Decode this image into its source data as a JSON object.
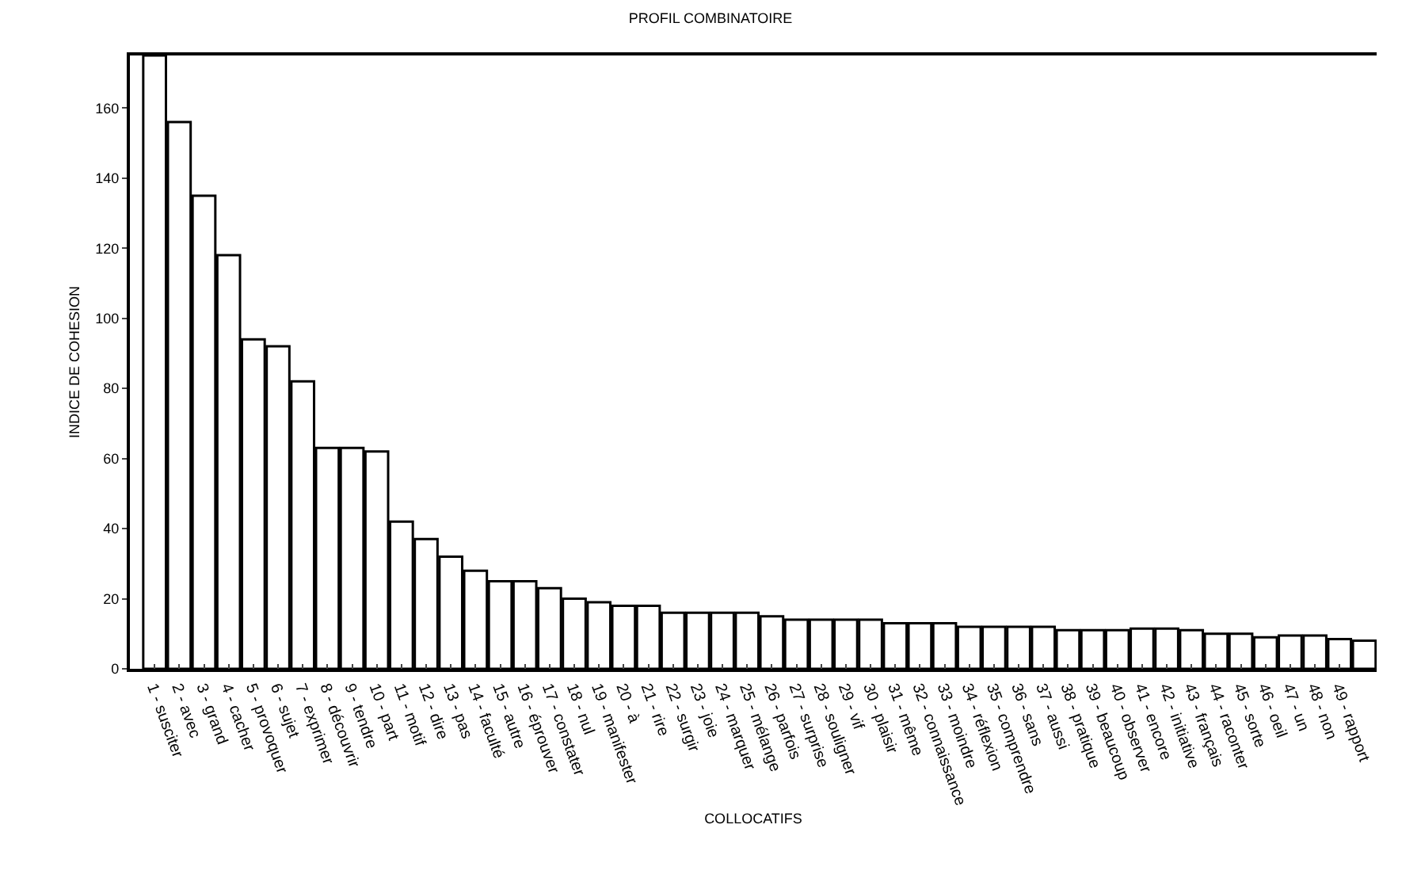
{
  "chart_data": {
    "type": "bar",
    "title": "PROFIL COMBINATOIRE",
    "xlabel": "COLLOCATIFS",
    "ylabel": "INDICE DE COHESION",
    "categories": [
      "1 - susciter",
      "2 - avec",
      "3 - grand",
      "4 - cacher",
      "5 - provoquer",
      "6 - sujet",
      "7 - exprimer",
      "8 - découvrir",
      "9 - tendre",
      "10 - part",
      "11 - motif",
      "12 - dire",
      "13 - pas",
      "14 - faculté",
      "15 - autre",
      "16 - éprouver",
      "17 - constater",
      "18 - nul",
      "19 - manifester",
      "20 - à",
      "21 - rire",
      "22 - surgir",
      "23 - joie",
      "24 - marquer",
      "25 - mélange",
      "26 - parfois",
      "27 - surprise",
      "28 - souligner",
      "29 - vif",
      "30 - plaisir",
      "31 - même",
      "32 - connaissance",
      "33 - moindre",
      "34 - réflexion",
      "35 - comprendre",
      "36 - sans",
      "37 - aussi",
      "38 - pratique",
      "39 - beaucoup",
      "40 - observer",
      "41 - encore",
      "42 - initiative",
      "43 - français",
      "44 - raconter",
      "45 - sorte",
      "46 - oeil",
      "47 - un",
      "48 - non",
      "49 - rapport",
      null
    ],
    "values": [
      175,
      156,
      135,
      118,
      94,
      92,
      82,
      63,
      63,
      62,
      42,
      37,
      32,
      28,
      25,
      25,
      23,
      20,
      19,
      18,
      18,
      16,
      16,
      16,
      16,
      15,
      14,
      14,
      14,
      14,
      13,
      13,
      13,
      12,
      12,
      12,
      12,
      11,
      11,
      11,
      11.5,
      11.5,
      11,
      10,
      10,
      9,
      9.5,
      9.5,
      8.5,
      8
    ],
    "color": "#ffffff",
    "ylim": [
      0,
      175
    ],
    "yticks": [
      0,
      20,
      40,
      60,
      80,
      100,
      120,
      140,
      160
    ],
    "grid": false
  }
}
